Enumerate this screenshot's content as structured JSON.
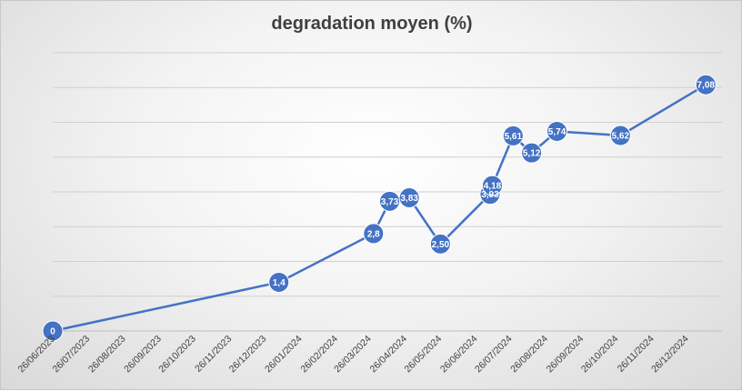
{
  "chart_data": {
    "type": "line",
    "title": "degradation moyen (%)",
    "xlabel": "",
    "ylabel": "",
    "x_ticks": [
      "26/06/2023",
      "26/07/2023",
      "26/08/2023",
      "26/09/2023",
      "26/10/2023",
      "26/11/2023",
      "26/12/2023",
      "26/01/2024",
      "26/02/2024",
      "26/03/2024",
      "26/04/2024",
      "26/05/2024",
      "26/06/2024",
      "26/07/2024",
      "26/08/2024",
      "26/09/2024",
      "26/10/2024",
      "26/11/2024",
      "26/12/2024"
    ],
    "xlim": [
      "2023-06-26",
      "2025-01-26"
    ],
    "ylim": [
      0,
      8
    ],
    "grid": true,
    "y_axis_labels_shown": false,
    "color": "#4472c4",
    "series": [
      {
        "points": [
          {
            "x": "2023-06-26",
            "y": 0,
            "label": "0"
          },
          {
            "x": "2024-01-08",
            "y": 1.4,
            "label": "1,4"
          },
          {
            "x": "2024-03-30",
            "y": 2.8,
            "label": "2,8"
          },
          {
            "x": "2024-04-13",
            "y": 3.73,
            "label": "3,73"
          },
          {
            "x": "2024-04-30",
            "y": 3.83,
            "label": "3,83"
          },
          {
            "x": "2024-05-27",
            "y": 2.5,
            "label": "2,50"
          },
          {
            "x": "2024-07-09",
            "y": 3.93,
            "label": "3,93"
          },
          {
            "x": "2024-07-11",
            "y": 4.18,
            "label": "4,18"
          },
          {
            "x": "2024-07-29",
            "y": 5.61,
            "label": "5,61"
          },
          {
            "x": "2024-08-14",
            "y": 5.12,
            "label": "5,12"
          },
          {
            "x": "2024-09-05",
            "y": 5.74,
            "label": "5,74"
          },
          {
            "x": "2024-10-30",
            "y": 5.62,
            "label": "5,62"
          },
          {
            "x": "2025-01-12",
            "y": 7.08,
            "label": "7,08"
          }
        ]
      }
    ]
  }
}
